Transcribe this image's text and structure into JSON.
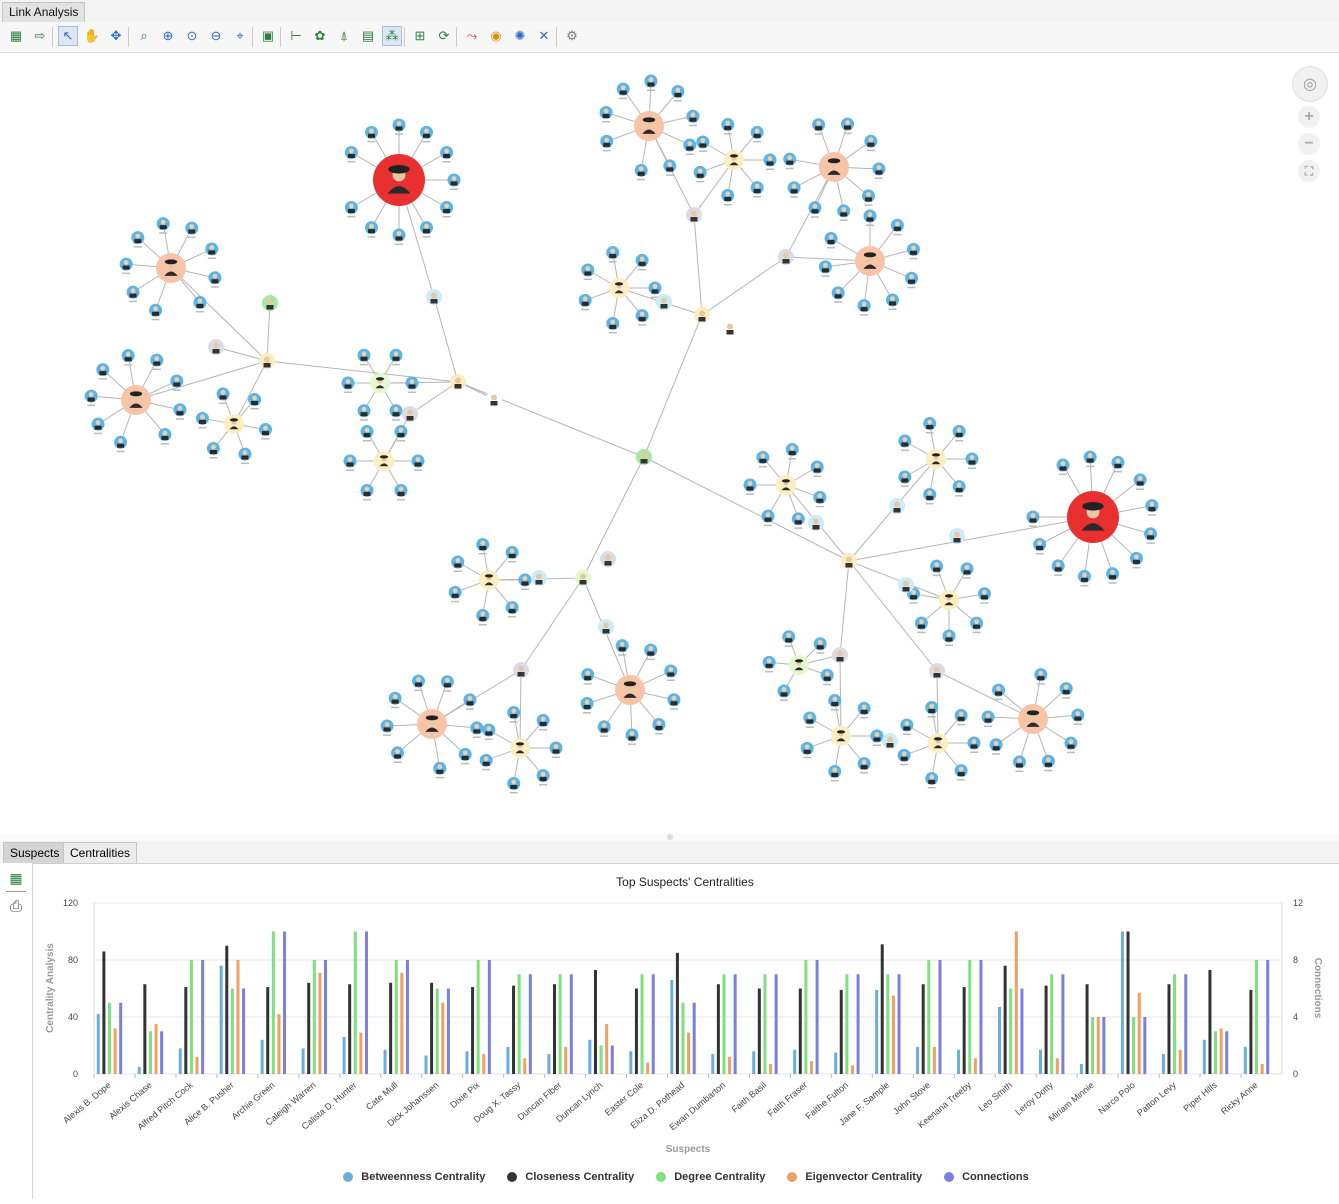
{
  "window": {
    "tab_label": "Link Analysis"
  },
  "toolbar": {
    "buttons": [
      {
        "name": "overview-icon",
        "glyph": "▦",
        "color": "#2f7d3a"
      },
      {
        "name": "export-icon",
        "glyph": "⇨",
        "color": "#2f7d3a"
      },
      {
        "name": "select-pointer-icon",
        "glyph": "↖",
        "color": "#2b6cc2",
        "selected": true
      },
      {
        "name": "pan-hand-icon",
        "glyph": "✋",
        "color": "#2b6cc2"
      },
      {
        "name": "move-icon",
        "glyph": "✥",
        "color": "#2b6cc2"
      },
      {
        "name": "zoom-area-icon",
        "glyph": "⌕",
        "color": "#2b6cc2"
      },
      {
        "name": "zoom-in-icon",
        "glyph": "⊕",
        "color": "#2b6cc2"
      },
      {
        "name": "zoom-fit-icon",
        "glyph": "⊙",
        "color": "#2b6cc2"
      },
      {
        "name": "zoom-out-icon",
        "glyph": "⊖",
        "color": "#2b6cc2"
      },
      {
        "name": "zoom-selection-icon",
        "glyph": "⌖",
        "color": "#2b6cc2"
      },
      {
        "name": "grid-layout-icon",
        "glyph": "▣",
        "color": "#2f7d3a"
      },
      {
        "name": "hierarchic-layout-icon",
        "glyph": "⊢",
        "color": "#2f7d3a"
      },
      {
        "name": "organic-layout-icon",
        "glyph": "✿",
        "color": "#2f7d3a"
      },
      {
        "name": "tree-layout-icon",
        "glyph": "⍋",
        "color": "#2f7d3a"
      },
      {
        "name": "orthogonal-layout-icon",
        "glyph": "▤",
        "color": "#2f7d3a"
      },
      {
        "name": "radial-layout-icon",
        "glyph": "⁂",
        "color": "#2f7d3a",
        "selected": true
      },
      {
        "name": "compact-layout-icon",
        "glyph": "⊞",
        "color": "#2f7d3a"
      },
      {
        "name": "refresh-layout-icon",
        "glyph": "⟳",
        "color": "#2f7d3a"
      },
      {
        "name": "shortest-path-icon",
        "glyph": "⤳",
        "color": "#d03030"
      },
      {
        "name": "target-icon",
        "glyph": "◉",
        "color": "#e08a10"
      },
      {
        "name": "network-icon",
        "glyph": "✺",
        "color": "#2b6cc2"
      },
      {
        "name": "disconnect-icon",
        "glyph": "✕",
        "color": "#2b6cc2"
      },
      {
        "name": "settings-gear-icon",
        "glyph": "⚙",
        "color": "#777777"
      }
    ]
  },
  "navigation": {
    "zoom_in": "+",
    "zoom_out": "−",
    "fit": "⛶",
    "pan": "◎"
  },
  "bottom_tabs": [
    "Suspects",
    "Centralities"
  ],
  "side_tools": [
    {
      "name": "overview-icon",
      "glyph": "▦",
      "color": "#2f7d3a"
    },
    {
      "name": "print-icon",
      "glyph": "⎙",
      "color": "#555555"
    }
  ],
  "chart_data": {
    "type": "bar",
    "title": "Top Suspects' Centralities",
    "xlabel": "Suspects",
    "ylabel": "Centrality Analysis",
    "y2label": "Connections",
    "ylim": [
      0,
      120
    ],
    "y2lim": [
      0,
      12
    ],
    "yticks": [
      "0",
      "40",
      "80",
      "120"
    ],
    "y2ticks": [
      "0",
      "4",
      "8",
      "12"
    ],
    "grid": true,
    "legend_position": "bottom",
    "categories": [
      "Alexis B. Dope",
      "Alexis Chase",
      "Alfred Pitch Cock",
      "Alice B. Pusher",
      "Archie Green",
      "Caleigh Warren",
      "Calista D. Hunter",
      "Cate Mull",
      "Dick Johanssen",
      "Dixie Pix",
      "Doug X. Tassy",
      "Duncan Fiber",
      "Duncan Lynch",
      "Easter Cole",
      "Eliza D. Pothead",
      "Ewan Dumbarton",
      "Faith Basil",
      "Faith Fraser",
      "Faithe Fulton",
      "Jane F. Sample",
      "John Stove",
      "Keenana Treeby",
      "Leo Smith",
      "Leroy Dotty",
      "Miriam Minnie",
      "Narco Polo",
      "Patton Levy",
      "Piper Hills",
      "Ricky Anne"
    ],
    "series": [
      {
        "name": "Betweenness Centrality",
        "color": "#6aaee0",
        "axis": "left",
        "values": [
          42,
          5,
          18,
          76,
          24,
          18,
          26,
          17,
          13,
          16,
          19,
          14,
          24,
          16,
          66,
          14,
          16,
          17,
          15,
          59,
          19,
          17,
          47,
          17,
          7,
          100,
          14,
          24,
          19
        ]
      },
      {
        "name": "Closeness Centrality",
        "color": "#333333",
        "axis": "left",
        "values": [
          86,
          63,
          61,
          90,
          61,
          64,
          63,
          64,
          64,
          61,
          62,
          63,
          73,
          60,
          85,
          63,
          60,
          60,
          59,
          91,
          63,
          61,
          76,
          62,
          63,
          100,
          63,
          73,
          59
        ]
      },
      {
        "name": "Degree Centrality",
        "color": "#7ee07e",
        "axis": "left",
        "values": [
          50,
          30,
          80,
          60,
          100,
          80,
          100,
          80,
          60,
          80,
          70,
          70,
          20,
          70,
          50,
          70,
          70,
          80,
          70,
          70,
          80,
          80,
          60,
          70,
          40,
          40,
          70,
          30,
          80
        ]
      },
      {
        "name": "Eigenvector Centrality",
        "color": "#f0a060",
        "axis": "left",
        "values": [
          32,
          35,
          12,
          80,
          42,
          71,
          29,
          71,
          50,
          14,
          11,
          19,
          35,
          8,
          29,
          12,
          7,
          9,
          6,
          55,
          19,
          11,
          100,
          11,
          40,
          57,
          17,
          32,
          7
        ]
      },
      {
        "name": "Connections",
        "color": "#7b7fe0",
        "axis": "right",
        "values": [
          5,
          3,
          8,
          6,
          10,
          8,
          10,
          8,
          6,
          8,
          7,
          7,
          2,
          7,
          5,
          7,
          7,
          8,
          7,
          7,
          8,
          8,
          6,
          7,
          4,
          4,
          7,
          3,
          8
        ]
      }
    ]
  }
}
